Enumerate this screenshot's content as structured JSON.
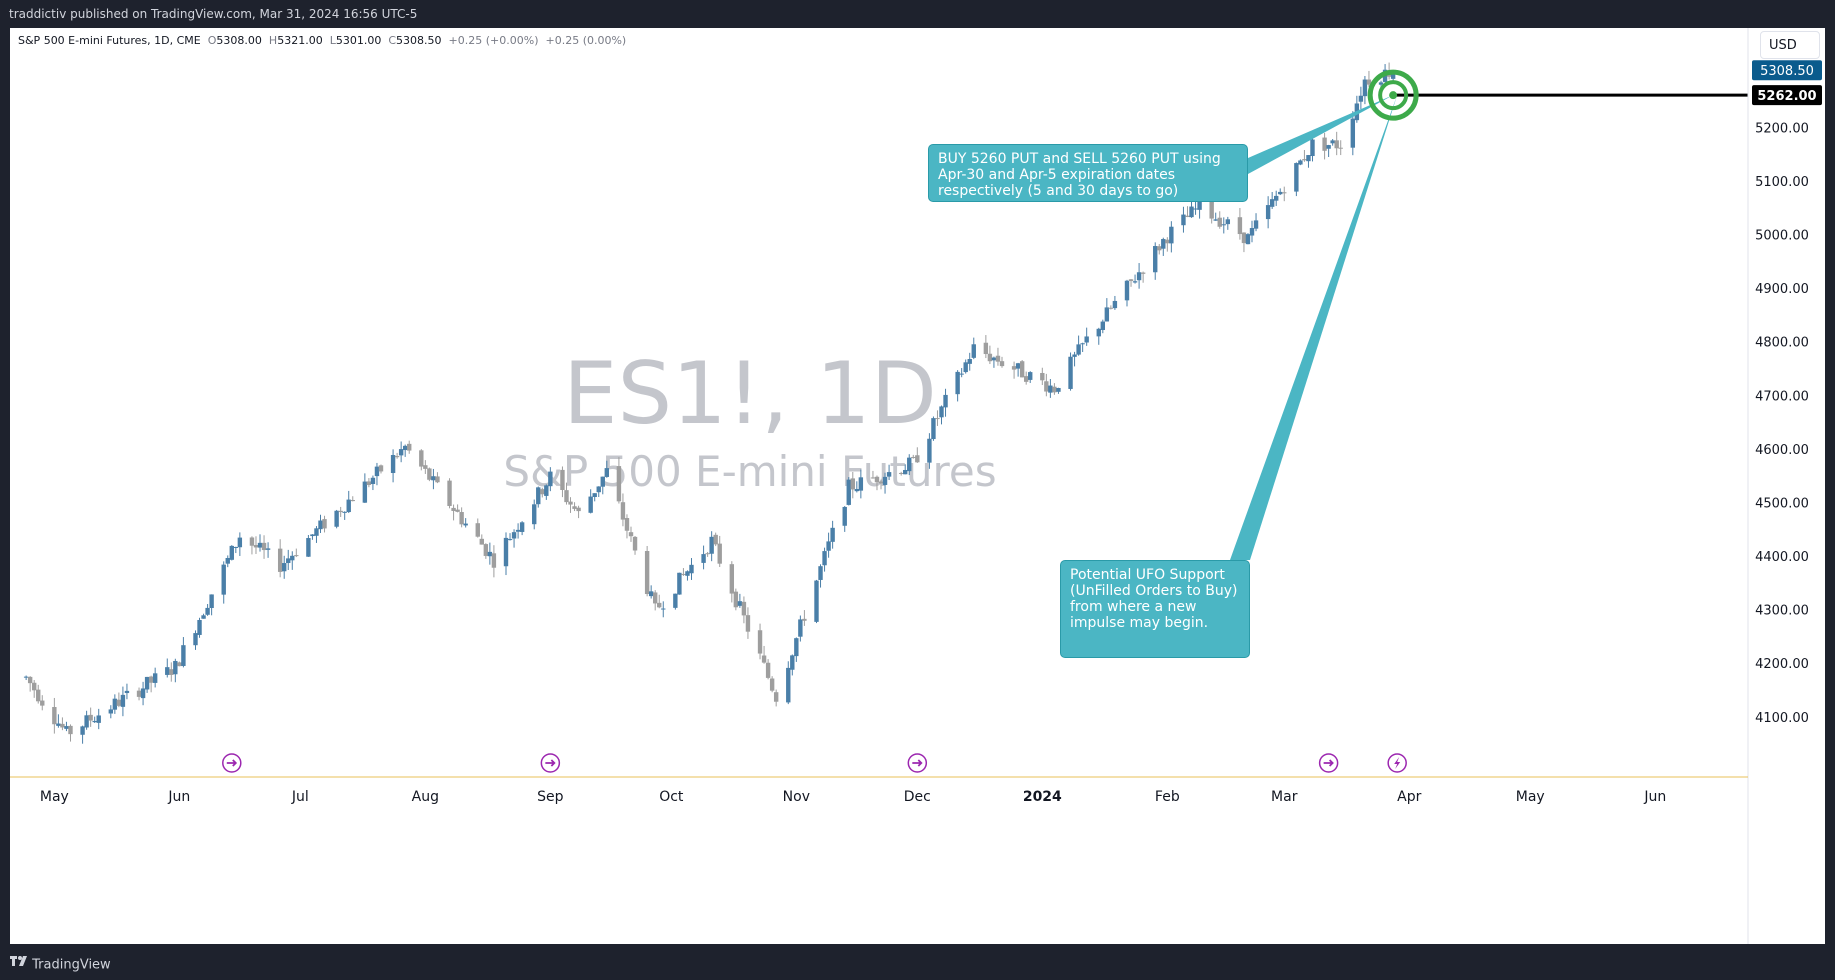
{
  "header": {
    "publish_text": "traddictiv published on TradingView.com, Mar 31, 2024 16:56 UTC-5"
  },
  "footer": {
    "brand": "TradingView"
  },
  "legend": {
    "title": "S&P 500 E-mini Futures, 1D, CME",
    "o_label": "O",
    "o_value": "5308.00",
    "h_label": "H",
    "h_value": "5321.00",
    "l_label": "L",
    "l_value": "5301.00",
    "c_label": "C",
    "c_value": "5308.50",
    "change1": "+0.25 (+0.00%)",
    "change2": "+0.25 (0.00%)"
  },
  "currency": "USD",
  "watermark": {
    "symbol": "ES1!, 1D",
    "name": "S&P 500 E-mini Futures"
  },
  "annotations": {
    "note1": "BUY 5260 PUT and SELL 5260 PUT using Apr-30 and Apr-5 expiration dates respectively (5 and 30 days to go)",
    "note2": "Potential UFO Support (UnFilled Orders to Buy) from where a new impulse may begin."
  },
  "colors": {
    "up": "#4a7fa8",
    "down": "#9e9e9e",
    "accent": "#4bb6c4",
    "target": "#3daa4a",
    "last_price_bg": "#0a5b8d",
    "event_icon": "#9c27b0",
    "session_line": "#e8c15a"
  },
  "icons": [
    "target-icon",
    "event-arrow-icon",
    "event-bolt-icon",
    "tradingview-logo-icon"
  ],
  "chart_data": {
    "type": "candlestick",
    "symbol": "ES1!",
    "interval": "1D",
    "ylim": [
      4025,
      5350
    ],
    "y_ticks": [
      "4100.00",
      "4200.00",
      "4300.00",
      "4400.00",
      "4500.00",
      "4600.00",
      "4700.00",
      "4800.00",
      "4900.00",
      "5000.00",
      "5100.00",
      "5200.00"
    ],
    "x_labels": [
      "May",
      "Jun",
      "Jul",
      "Aug",
      "Sep",
      "Oct",
      "Nov",
      "Dec",
      "2024",
      "Feb",
      "Mar",
      "Apr",
      "May",
      "Jun"
    ],
    "last_price": "5308.50",
    "level_price": "5262.00",
    "grid": false,
    "anchors": [
      [
        "2023-04-24",
        4175
      ],
      [
        "2023-05-04",
        4070
      ],
      [
        "2023-05-31",
        4195
      ],
      [
        "2023-06-16",
        4440
      ],
      [
        "2023-06-26",
        4385
      ],
      [
        "2023-07-27",
        4605
      ],
      [
        "2023-08-18",
        4395
      ],
      [
        "2023-09-01",
        4550
      ],
      [
        "2023-09-08",
        4480
      ],
      [
        "2023-09-15",
        4560
      ],
      [
        "2023-09-27",
        4300
      ],
      [
        "2023-10-11",
        4430
      ],
      [
        "2023-10-27",
        4140
      ],
      [
        "2023-11-14",
        4530
      ],
      [
        "2023-11-30",
        4575
      ],
      [
        "2023-12-15",
        4790
      ],
      [
        "2024-01-04",
        4715
      ],
      [
        "2024-01-12",
        4805
      ],
      [
        "2024-02-01",
        5000
      ],
      [
        "2024-02-09",
        5055
      ],
      [
        "2024-02-21",
        4995
      ],
      [
        "2024-03-08",
        5170
      ],
      [
        "2024-03-15",
        5170
      ],
      [
        "2024-03-21",
        5290
      ],
      [
        "2024-03-28",
        5308.5
      ]
    ],
    "level_line": {
      "price": 5262,
      "from": "2024-03-28"
    },
    "target_point": {
      "date": "2024-03-28",
      "price": 5262
    },
    "events": [
      {
        "date": "2023-06-14",
        "type": "arrow"
      },
      {
        "date": "2023-09-01",
        "type": "arrow"
      },
      {
        "date": "2023-12-01",
        "type": "arrow"
      },
      {
        "date": "2024-03-12",
        "type": "arrow"
      },
      {
        "date": "2024-03-29",
        "type": "bolt"
      }
    ]
  }
}
